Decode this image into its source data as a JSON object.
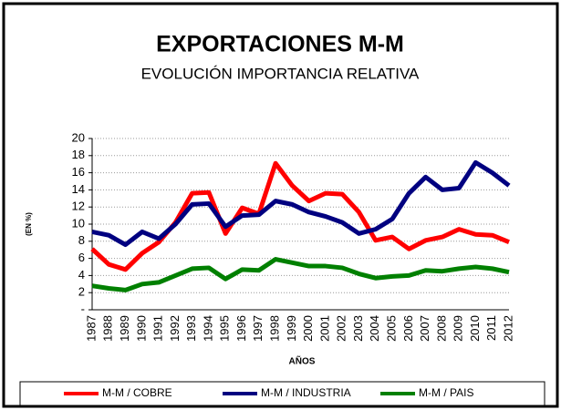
{
  "chart_data": {
    "type": "line",
    "title": "EXPORTACIONES M-M",
    "subtitle": "EVOLUCIÓN IMPORTANCIA RELATIVA",
    "x_label": "AÑOS",
    "y_label": "(EN %)",
    "categories": [
      "1987",
      "1988",
      "1989",
      "1990",
      "1991",
      "1992",
      "1993",
      "1994",
      "1995",
      "1996",
      "1997",
      "1998",
      "1999",
      "2000",
      "2001",
      "2002",
      "2003",
      "2004",
      "2005",
      "2006",
      "2007",
      "2008",
      "2009",
      "2010",
      "2011",
      "2012"
    ],
    "series": [
      {
        "name": "M-M / COBRE",
        "color": "#ff0000",
        "values": [
          7.1,
          5.3,
          4.7,
          6.6,
          7.9,
          10.2,
          13.6,
          13.7,
          8.9,
          11.9,
          11.2,
          17.1,
          14.5,
          12.7,
          13.6,
          13.5,
          11.4,
          8.1,
          8.5,
          7.1,
          8.1,
          8.5,
          9.4,
          8.8,
          8.7,
          7.9
        ]
      },
      {
        "name": "M-M / INDUSTRIA",
        "color": "#000080",
        "values": [
          9.1,
          8.7,
          7.6,
          9.1,
          8.3,
          10.0,
          12.3,
          12.4,
          9.7,
          11.0,
          11.1,
          12.7,
          12.3,
          11.4,
          10.9,
          10.2,
          8.9,
          9.4,
          10.6,
          13.6,
          15.5,
          14.0,
          14.2,
          17.2,
          16.0,
          14.5
        ]
      },
      {
        "name": "M-M / PAIS",
        "color": "#008000",
        "values": [
          2.8,
          2.5,
          2.3,
          3.0,
          3.2,
          4.0,
          4.8,
          4.9,
          3.6,
          4.7,
          4.6,
          5.9,
          5.5,
          5.1,
          5.1,
          4.9,
          4.2,
          3.7,
          3.9,
          4.0,
          4.6,
          4.5,
          4.8,
          5.0,
          4.8,
          4.4
        ]
      }
    ],
    "ylim": [
      0,
      20
    ],
    "yticks": [
      {
        "value": 0,
        "label": "-"
      },
      2,
      4,
      6,
      8,
      10,
      12,
      14,
      16,
      18,
      20
    ],
    "grid": true,
    "legend": "bottom"
  }
}
